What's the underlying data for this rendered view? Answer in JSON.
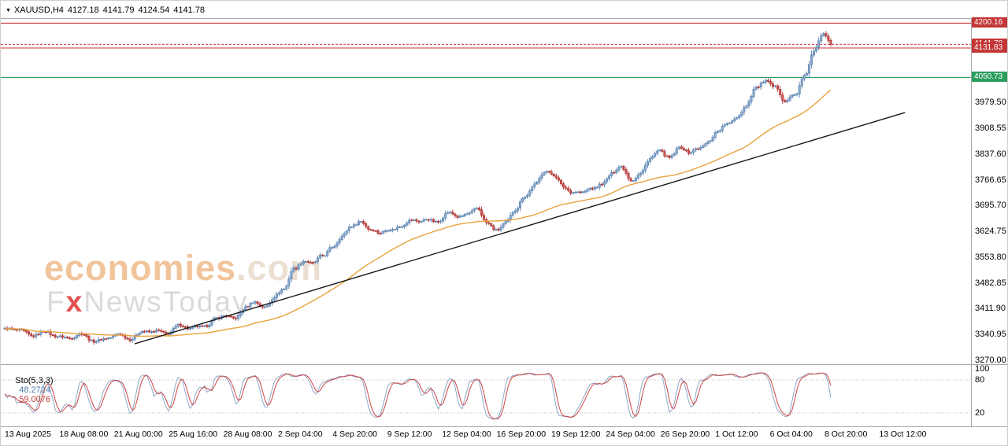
{
  "header": {
    "symbol": "XAUUSD,H4",
    "open": "4127.18",
    "high": "4141.79",
    "low": "4124.54",
    "close": "4141.78"
  },
  "watermark": {
    "brand": "economies",
    "brand_suffix": ".com",
    "line2_prefix": "F",
    "line2_x": "x",
    "line2_rest": "NewsToday"
  },
  "chart_data": {
    "type": "candlestick",
    "symbol": "XAUUSD",
    "timeframe": "H4",
    "last_ohlc": {
      "open": 4127.18,
      "high": 4141.79,
      "low": 4124.54,
      "close": 4141.78
    },
    "price_axis": {
      "min": 3263,
      "max": 4212,
      "labels": [
        3979.5,
        3908.55,
        3837.6,
        3766.65,
        3695.7,
        3624.75,
        3553.8,
        3482.85,
        3411.9,
        3340.95,
        3270.0
      ]
    },
    "time_axis": {
      "labels": [
        "13 Aug 2025",
        "18 Aug 08:00",
        "21 Aug 00:00",
        "25 Aug 16:00",
        "28 Aug 08:00",
        "2 Sep 04:00",
        "4 Sep 20:00",
        "9 Sep 12:00",
        "12 Sep 04:00",
        "16 Sep 20:00",
        "19 Sep 12:00",
        "24 Sep 04:00",
        "26 Sep 20:00",
        "1 Oct 12:00",
        "6 Oct 04:00",
        "8 Oct 20:00",
        "13 Oct 12:00"
      ]
    },
    "levels": [
      {
        "price": 4200.16,
        "label": "4200.16",
        "color": "#c43636",
        "role": "resistance"
      },
      {
        "price": 4131.83,
        "label": "4131.83",
        "color": "#c43636",
        "role": "pivot"
      },
      {
        "price": 4050.73,
        "label": "4050.73",
        "color": "#2b9e5e",
        "role": "support"
      }
    ],
    "current_price": {
      "price": 4141.78,
      "label": "4141.78",
      "color": "#c43636"
    },
    "series": {
      "anchors": [
        3358,
        3349,
        3354,
        3343,
        3347,
        3337,
        3343,
        3333,
        3339,
        3328,
        3334,
        3329,
        3341,
        3335,
        3349,
        3343,
        3356,
        3350,
        3363,
        3357,
        3371,
        3366,
        3382,
        3398,
        3392,
        3412,
        3430,
        3424,
        3446,
        3462,
        3528,
        3549,
        3533,
        3558,
        3590,
        3612,
        3635,
        3658,
        3636,
        3616,
        3630,
        3646,
        3655,
        3648,
        3664,
        3657,
        3673,
        3665,
        3681,
        3689,
        3645,
        3634,
        3655,
        3680,
        3722,
        3762,
        3790,
        3776,
        3754,
        3738,
        3728,
        3744,
        3764,
        3784,
        3800,
        3772,
        3790,
        3822,
        3848,
        3836,
        3856,
        3838,
        3860,
        3876,
        3896,
        3922,
        3948,
        3972,
        4018,
        4046,
        4028,
        3978,
        4002,
        4060,
        4120,
        4168,
        4142
      ],
      "candles_per_anchor": 4
    },
    "trendline": {
      "x1_frac": 0.138,
      "price1": 3317,
      "x2_frac": 0.932,
      "price2": 3954,
      "color": "#1a1a1a"
    },
    "moving_average": {
      "period": 50,
      "color": "#e8a23c"
    },
    "stochastic": {
      "name": "Sto(5,3,3)",
      "value_k": "48.2724",
      "value_d": "59.0076",
      "upper_level": 80,
      "lower_level": 20,
      "axis_labels": [
        100,
        80,
        20
      ],
      "k_color": "#8fa8c8",
      "d_color": "#cc4444"
    },
    "candle_colors": {
      "up_fill": "#88a9d2",
      "up_stroke": "#5d83ae",
      "down_fill": "#d65353",
      "down_stroke": "#aa3434"
    }
  }
}
